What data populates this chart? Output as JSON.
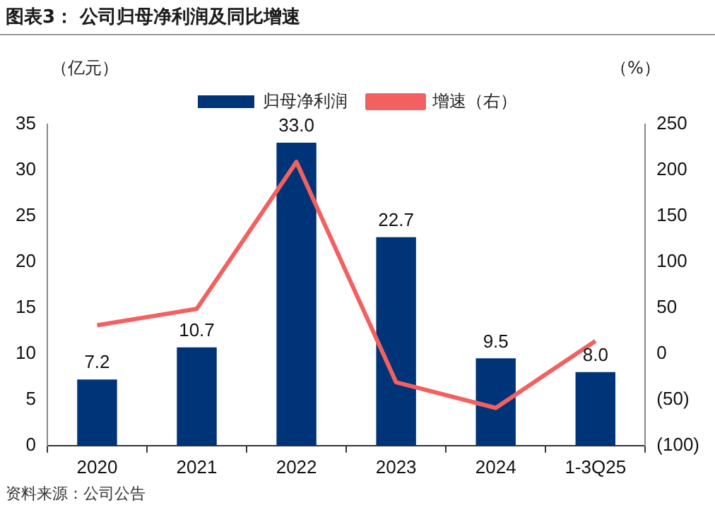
{
  "chart_data": {
    "type": "bar",
    "title": "图表3：  公司归母净利润及同比增速",
    "ylabel": "（亿元）",
    "y2label": "（%）",
    "categories": [
      "2020",
      "2021",
      "2022",
      "2023",
      "2024",
      "1-3Q25"
    ],
    "series": [
      {
        "name": "归母净利润",
        "color": "#003478",
        "values": [
          7.2,
          10.7,
          33.0,
          22.7,
          9.5,
          8.0
        ],
        "value_labels": [
          "7.2",
          "10.7",
          "33.0",
          "22.7",
          "9.5",
          "8.0"
        ]
      },
      {
        "name": "增速（右）",
        "type": "line",
        "axis": "y2",
        "color": "#f26060",
        "values": [
          31,
          49,
          209,
          -31,
          -59,
          14
        ]
      }
    ],
    "ylim": [
      0,
      35
    ],
    "yticks": [
      0,
      5,
      10,
      15,
      20,
      25,
      30,
      35
    ],
    "y2lim": [
      -100,
      250
    ],
    "y2ticks": [
      {
        "value": -100,
        "label": "(100)"
      },
      {
        "value": -50,
        "label": "(50)"
      },
      0,
      50,
      100,
      150,
      200,
      250
    ],
    "legend": "top",
    "grid": false,
    "marker": "none",
    "annotations": [
      "资料来源：公司公告"
    ]
  }
}
